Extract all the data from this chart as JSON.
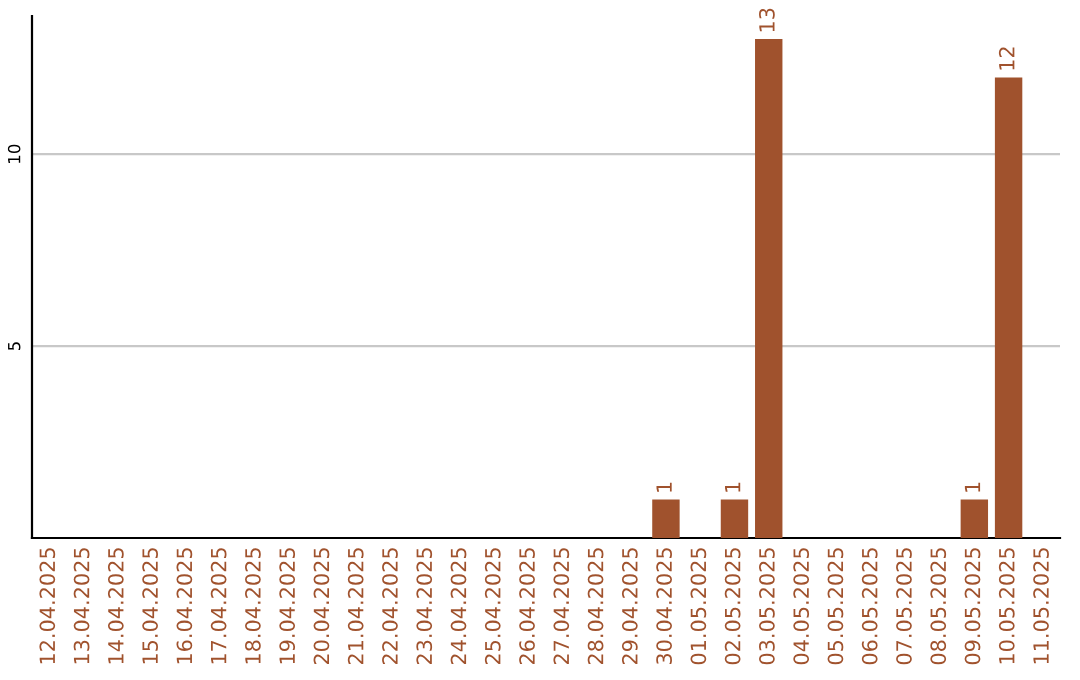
{
  "chart_data": {
    "type": "bar",
    "categories": [
      "12.04.2025",
      "13.04.2025",
      "14.04.2025",
      "15.04.2025",
      "16.04.2025",
      "17.04.2025",
      "18.04.2025",
      "19.04.2025",
      "20.04.2025",
      "21.04.2025",
      "22.04.2025",
      "23.04.2025",
      "24.04.2025",
      "25.04.2025",
      "26.04.2025",
      "27.04.2025",
      "28.04.2025",
      "29.04.2025",
      "30.04.2025",
      "01.05.2025",
      "02.05.2025",
      "03.05.2025",
      "04.05.2025",
      "05.05.2025",
      "06.05.2025",
      "07.05.2025",
      "08.05.2025",
      "09.05.2025",
      "10.05.2025",
      "11.05.2025"
    ],
    "values": [
      0,
      0,
      0,
      0,
      0,
      0,
      0,
      0,
      0,
      0,
      0,
      0,
      0,
      0,
      0,
      0,
      0,
      0,
      1,
      0,
      1,
      13,
      0,
      0,
      0,
      0,
      0,
      1,
      12,
      0
    ],
    "value_labels": [
      null,
      null,
      null,
      null,
      null,
      null,
      null,
      null,
      null,
      null,
      null,
      null,
      null,
      null,
      null,
      null,
      null,
      null,
      "1",
      null,
      "1",
      "13",
      null,
      null,
      null,
      null,
      null,
      "1",
      "12",
      null
    ],
    "color": "#a0522d",
    "ylim": [
      0,
      13.6
    ],
    "yticks": [
      5,
      10
    ],
    "grid": "y"
  }
}
